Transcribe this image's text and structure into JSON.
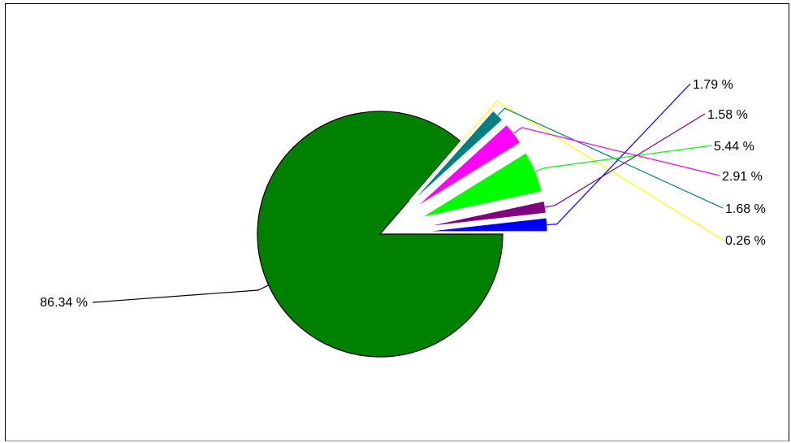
{
  "chart_data": {
    "type": "pie",
    "title": "",
    "legend": "none",
    "slices": [
      {
        "value": 86.34,
        "label": "86.34 %",
        "color": "#008000",
        "exploded": false
      },
      {
        "value": 0.26,
        "label": "0.26 %",
        "color": "#ffff00",
        "exploded": true
      },
      {
        "value": 1.68,
        "label": "1.68 %",
        "color": "#008080",
        "exploded": true
      },
      {
        "value": 2.91,
        "label": "2.91 %",
        "color": "#ff00ff",
        "exploded": true
      },
      {
        "value": 5.44,
        "label": "5.44 %",
        "color": "#00ff00",
        "exploded": true
      },
      {
        "value": 1.58,
        "label": "1.58 %",
        "color": "#800080",
        "exploded": true
      },
      {
        "value": 1.79,
        "label": "1.79 %",
        "color": "#0000ff",
        "exploded": true
      }
    ]
  }
}
